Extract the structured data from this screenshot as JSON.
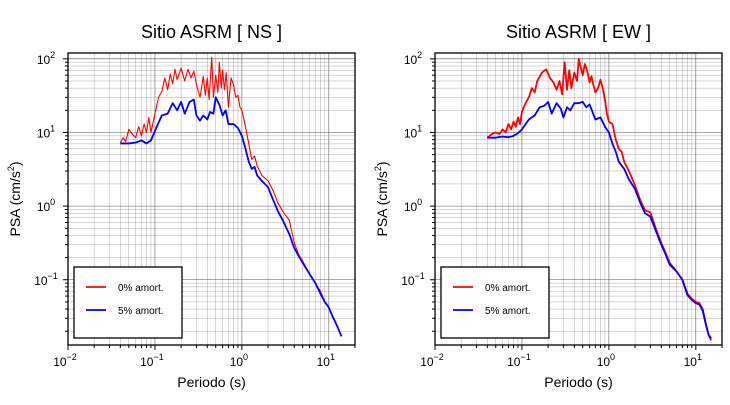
{
  "chart_data": [
    {
      "type": "line",
      "title": "Sitio ASRM [ NS ]",
      "xlabel": "Periodo (s)",
      "ylabel": "PSA (cm/s",
      "ylabel_sup": "2",
      "ylabel_close": ")",
      "x_scale": "log",
      "y_scale": "log",
      "xlim": [
        0.01,
        20
      ],
      "ylim": [
        0.013,
        120
      ],
      "x_ticks": [
        {
          "value": 0.01,
          "base": "10",
          "exp": "−2"
        },
        {
          "value": 0.1,
          "base": "10",
          "exp": "−1"
        },
        {
          "value": 1,
          "base": "10",
          "exp": "0"
        },
        {
          "value": 10,
          "base": "10",
          "exp": "1"
        }
      ],
      "y_ticks": [
        {
          "value": 0.1,
          "base": "10",
          "exp": "−1"
        },
        {
          "value": 1,
          "base": "10",
          "exp": "0"
        },
        {
          "value": 10,
          "base": "10",
          "exp": "1"
        },
        {
          "value": 100,
          "base": "10",
          "exp": "2"
        }
      ],
      "grid": true,
      "legend_position": "bottom-left",
      "series": [
        {
          "name": "0% amort.",
          "color": "#ff0000",
          "stroke_width": 1.1,
          "points": [
            [
              0.04,
              7.2
            ],
            [
              0.043,
              8.5
            ],
            [
              0.046,
              7.5
            ],
            [
              0.05,
              11
            ],
            [
              0.055,
              9.5
            ],
            [
              0.06,
              8.5
            ],
            [
              0.065,
              12
            ],
            [
              0.07,
              9
            ],
            [
              0.075,
              13
            ],
            [
              0.08,
              10
            ],
            [
              0.085,
              16
            ],
            [
              0.09,
              10
            ],
            [
              0.1,
              18
            ],
            [
              0.11,
              30
            ],
            [
              0.12,
              36
            ],
            [
              0.13,
              55
            ],
            [
              0.14,
              38
            ],
            [
              0.15,
              62
            ],
            [
              0.16,
              46
            ],
            [
              0.17,
              72
            ],
            [
              0.18,
              52
            ],
            [
              0.2,
              75
            ],
            [
              0.22,
              50
            ],
            [
              0.24,
              72
            ],
            [
              0.26,
              55
            ],
            [
              0.28,
              68
            ],
            [
              0.3,
              45
            ],
            [
              0.33,
              30
            ],
            [
              0.36,
              58
            ],
            [
              0.38,
              32
            ],
            [
              0.4,
              55
            ],
            [
              0.42,
              28
            ],
            [
              0.45,
              105
            ],
            [
              0.47,
              30
            ],
            [
              0.5,
              60
            ],
            [
              0.53,
              35
            ],
            [
              0.55,
              90
            ],
            [
              0.58,
              40
            ],
            [
              0.6,
              70
            ],
            [
              0.63,
              38
            ],
            [
              0.66,
              65
            ],
            [
              0.7,
              22
            ],
            [
              0.75,
              55
            ],
            [
              0.8,
              45
            ],
            [
              0.85,
              30
            ],
            [
              0.9,
              32
            ],
            [
              0.95,
              22
            ],
            [
              1.0,
              20
            ],
            [
              1.1,
              12
            ],
            [
              1.2,
              7
            ],
            [
              1.3,
              4.3
            ],
            [
              1.4,
              4.8
            ],
            [
              1.5,
              3.5
            ],
            [
              1.7,
              2.6
            ],
            [
              2.0,
              2.2
            ],
            [
              2.3,
              1.6
            ],
            [
              2.6,
              1.1
            ],
            [
              3.0,
              0.82
            ],
            [
              3.5,
              0.65
            ],
            [
              4.0,
              0.32
            ],
            [
              4.5,
              0.22
            ],
            [
              5,
              0.18
            ],
            [
              6,
              0.12
            ],
            [
              7,
              0.09
            ],
            [
              8,
              0.07
            ],
            [
              9,
              0.05
            ],
            [
              10,
              0.042
            ],
            [
              11,
              0.032
            ],
            [
              12,
              0.026
            ],
            [
              13,
              0.021
            ],
            [
              14,
              0.017
            ]
          ]
        },
        {
          "name": "5% amort.",
          "color": "#0000ff",
          "stroke_width": 1.8,
          "points": [
            [
              0.04,
              7.1
            ],
            [
              0.05,
              7.1
            ],
            [
              0.06,
              7.3
            ],
            [
              0.07,
              7.8
            ],
            [
              0.08,
              7.1
            ],
            [
              0.09,
              7.8
            ],
            [
              0.1,
              10.5
            ],
            [
              0.12,
              17
            ],
            [
              0.14,
              18
            ],
            [
              0.16,
              25
            ],
            [
              0.18,
              20
            ],
            [
              0.2,
              26
            ],
            [
              0.22,
              18
            ],
            [
              0.25,
              26
            ],
            [
              0.28,
              28
            ],
            [
              0.3,
              17
            ],
            [
              0.33,
              14.5
            ],
            [
              0.36,
              17
            ],
            [
              0.4,
              15
            ],
            [
              0.43,
              19
            ],
            [
              0.47,
              18
            ],
            [
              0.5,
              30
            ],
            [
              0.55,
              24
            ],
            [
              0.6,
              17
            ],
            [
              0.65,
              20
            ],
            [
              0.7,
              13
            ],
            [
              0.8,
              13
            ],
            [
              0.9,
              11.5
            ],
            [
              1.0,
              9
            ],
            [
              1.1,
              6
            ],
            [
              1.2,
              4
            ],
            [
              1.3,
              3.2
            ],
            [
              1.4,
              3.4
            ],
            [
              1.5,
              2.6
            ],
            [
              1.7,
              2.2
            ],
            [
              2.0,
              1.8
            ],
            [
              2.3,
              1.2
            ],
            [
              2.6,
              0.85
            ],
            [
              3.0,
              0.62
            ],
            [
              3.5,
              0.42
            ],
            [
              4.0,
              0.27
            ],
            [
              4.5,
              0.21
            ],
            [
              5,
              0.17
            ],
            [
              6,
              0.12
            ],
            [
              7,
              0.09
            ],
            [
              8,
              0.065
            ],
            [
              9,
              0.05
            ],
            [
              10,
              0.042
            ],
            [
              11,
              0.032
            ],
            [
              12,
              0.026
            ],
            [
              13,
              0.021
            ],
            [
              14,
              0.017
            ]
          ]
        }
      ]
    },
    {
      "type": "line",
      "title": "Sitio ASRM [ EW ]",
      "xlabel": "Periodo (s)",
      "ylabel": "PSA (cm/s",
      "ylabel_sup": "2",
      "ylabel_close": ")",
      "x_scale": "log",
      "y_scale": "log",
      "xlim": [
        0.01,
        20
      ],
      "ylim": [
        0.013,
        120
      ],
      "x_ticks": [
        {
          "value": 0.01,
          "base": "10",
          "exp": "−2"
        },
        {
          "value": 0.1,
          "base": "10",
          "exp": "−1"
        },
        {
          "value": 1,
          "base": "10",
          "exp": "0"
        },
        {
          "value": 10,
          "base": "10",
          "exp": "1"
        }
      ],
      "y_ticks": [
        {
          "value": 0.1,
          "base": "10",
          "exp": "−1"
        },
        {
          "value": 1,
          "base": "10",
          "exp": "0"
        },
        {
          "value": 10,
          "base": "10",
          "exp": "1"
        },
        {
          "value": 100,
          "base": "10",
          "exp": "2"
        }
      ],
      "grid": true,
      "legend_position": "bottom-left",
      "series": [
        {
          "name": "0% amort.",
          "color": "#ff0000",
          "stroke_width": 1.8,
          "points": [
            [
              0.04,
              8.5
            ],
            [
              0.045,
              9.5
            ],
            [
              0.05,
              10
            ],
            [
              0.055,
              9.5
            ],
            [
              0.06,
              11
            ],
            [
              0.065,
              10
            ],
            [
              0.07,
              13
            ],
            [
              0.075,
              11
            ],
            [
              0.08,
              14
            ],
            [
              0.085,
              12
            ],
            [
              0.09,
              16
            ],
            [
              0.095,
              13
            ],
            [
              0.1,
              19
            ],
            [
              0.11,
              25
            ],
            [
              0.12,
              30
            ],
            [
              0.13,
              40
            ],
            [
              0.14,
              35
            ],
            [
              0.15,
              50
            ],
            [
              0.17,
              65
            ],
            [
              0.19,
              72
            ],
            [
              0.21,
              55
            ],
            [
              0.23,
              48
            ],
            [
              0.25,
              38
            ],
            [
              0.27,
              50
            ],
            [
              0.29,
              33
            ],
            [
              0.31,
              90
            ],
            [
              0.33,
              38
            ],
            [
              0.35,
              70
            ],
            [
              0.37,
              40
            ],
            [
              0.4,
              65
            ],
            [
              0.43,
              50
            ],
            [
              0.45,
              100
            ],
            [
              0.47,
              80
            ],
            [
              0.5,
              60
            ],
            [
              0.53,
              85
            ],
            [
              0.56,
              70
            ],
            [
              0.6,
              48
            ],
            [
              0.63,
              58
            ],
            [
              0.66,
              45
            ],
            [
              0.7,
              35
            ],
            [
              0.75,
              40
            ],
            [
              0.8,
              52
            ],
            [
              0.85,
              40
            ],
            [
              0.9,
              28
            ],
            [
              0.95,
              18
            ],
            [
              1.0,
              14
            ],
            [
              1.1,
              13
            ],
            [
              1.2,
              8
            ],
            [
              1.3,
              6
            ],
            [
              1.4,
              5.5
            ],
            [
              1.5,
              4
            ],
            [
              1.7,
              3
            ],
            [
              2.0,
              1.9
            ],
            [
              2.3,
              1.2
            ],
            [
              2.6,
              0.88
            ],
            [
              3.0,
              0.82
            ],
            [
              3.5,
              0.48
            ],
            [
              4.0,
              0.32
            ],
            [
              4.5,
              0.23
            ],
            [
              5,
              0.17
            ],
            [
              6,
              0.13
            ],
            [
              7,
              0.1
            ],
            [
              8,
              0.065
            ],
            [
              9,
              0.055
            ],
            [
              10,
              0.05
            ],
            [
              11,
              0.048
            ],
            [
              12,
              0.04
            ],
            [
              13,
              0.026
            ],
            [
              14,
              0.018
            ],
            [
              15,
              0.015
            ]
          ]
        },
        {
          "name": "5% amort.",
          "color": "#0000ff",
          "stroke_width": 1.8,
          "points": [
            [
              0.04,
              8.5
            ],
            [
              0.05,
              8.5
            ],
            [
              0.06,
              8.8
            ],
            [
              0.07,
              8.6
            ],
            [
              0.08,
              9
            ],
            [
              0.09,
              9.8
            ],
            [
              0.1,
              11
            ],
            [
              0.12,
              15
            ],
            [
              0.14,
              17
            ],
            [
              0.16,
              22
            ],
            [
              0.18,
              23
            ],
            [
              0.2,
              26
            ],
            [
              0.22,
              18
            ],
            [
              0.25,
              25
            ],
            [
              0.28,
              21
            ],
            [
              0.3,
              16
            ],
            [
              0.33,
              22
            ],
            [
              0.36,
              20
            ],
            [
              0.4,
              25
            ],
            [
              0.45,
              25
            ],
            [
              0.5,
              26
            ],
            [
              0.55,
              22
            ],
            [
              0.6,
              24
            ],
            [
              0.7,
              15
            ],
            [
              0.8,
              16
            ],
            [
              0.9,
              12
            ],
            [
              1.0,
              10
            ],
            [
              1.1,
              7
            ],
            [
              1.2,
              5.5
            ],
            [
              1.3,
              4
            ],
            [
              1.5,
              3.2
            ],
            [
              1.7,
              2.3
            ],
            [
              2.0,
              1.7
            ],
            [
              2.3,
              1.1
            ],
            [
              2.6,
              0.8
            ],
            [
              3.0,
              0.72
            ],
            [
              3.5,
              0.45
            ],
            [
              4.0,
              0.3
            ],
            [
              4.5,
              0.22
            ],
            [
              5,
              0.16
            ],
            [
              6,
              0.13
            ],
            [
              7,
              0.1
            ],
            [
              8,
              0.062
            ],
            [
              9,
              0.053
            ],
            [
              10,
              0.048
            ],
            [
              11,
              0.046
            ],
            [
              12,
              0.038
            ],
            [
              13,
              0.025
            ],
            [
              14,
              0.018
            ],
            [
              15,
              0.016
            ]
          ]
        }
      ]
    }
  ]
}
